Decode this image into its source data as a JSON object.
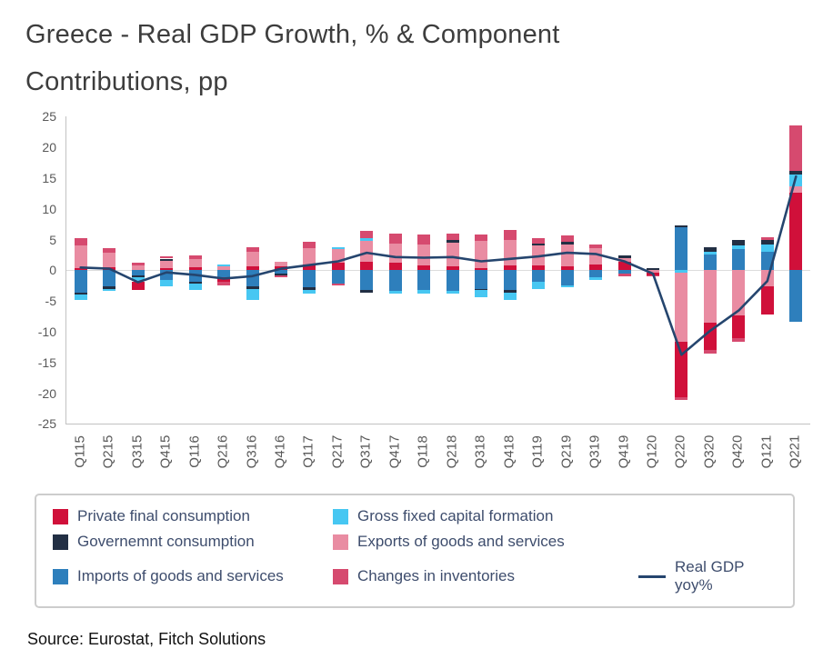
{
  "title": "Greece - Real GDP Growth, % & Component Contributions, pp",
  "source": "Source: Eurostat, Fitch Solutions",
  "colors": {
    "private_consumption": "#D0103A",
    "government_consumption": "#222F44",
    "gross_fixed_capital_formation": "#47C7F2",
    "exports": "#E98CA2",
    "imports": "#2E7FBC",
    "inventories": "#D64A6F",
    "gdp_line": "#25456E",
    "axis_text": "#595959",
    "legend_text": "#3E4D6B"
  },
  "legend": {
    "items": [
      {
        "label": "Private final consumption",
        "color": "#D0103A",
        "type": "box"
      },
      {
        "label": "Gross fixed capital formation",
        "color": "#47C7F2",
        "type": "box"
      },
      {
        "label": "Governemnt consumption",
        "color": "#222F44",
        "type": "box"
      },
      {
        "label": "Exports of goods and services",
        "color": "#E98CA2",
        "type": "box"
      },
      {
        "label": "Imports of goods and services",
        "color": "#2E7FBC",
        "type": "box"
      },
      {
        "label": "Changes in inventories",
        "color": "#D64A6F",
        "type": "box"
      },
      {
        "label": "Real GDP yoy%",
        "color": "#25456E",
        "type": "line"
      }
    ]
  },
  "chart_data": {
    "type": "bar",
    "stacked": true,
    "title": "Greece - Real GDP Growth, % & Component Contributions, pp",
    "ylabel": "",
    "xlabel": "",
    "ylim": [
      -25,
      25
    ],
    "yticks": [
      25,
      20,
      15,
      10,
      5,
      0,
      -5,
      -10,
      -15,
      -20,
      -25
    ],
    "grid": false,
    "legend_position": "bottom",
    "categories": [
      "Q115",
      "Q215",
      "Q315",
      "Q415",
      "Q116",
      "Q216",
      "Q316",
      "Q416",
      "Q117",
      "Q217",
      "Q317",
      "Q417",
      "Q118",
      "Q218",
      "Q318",
      "Q418",
      "Q119",
      "Q219",
      "Q319",
      "Q419",
      "Q120",
      "Q220",
      "Q320",
      "Q420",
      "Q121",
      "Q221"
    ],
    "stack_order_positive": [
      "private",
      "exports",
      "imports",
      "gfcf",
      "gov",
      "inventories"
    ],
    "stack_order_negative": [
      "imports",
      "gov",
      "gfcf",
      "exports",
      "private",
      "inventories"
    ],
    "series": [
      {
        "key": "private",
        "name": "Private final consumption",
        "color": "#D0103A",
        "values": [
          0.4,
          0.5,
          -1.4,
          0.4,
          0.5,
          -0.6,
          0.6,
          0.6,
          1.0,
          1.2,
          1.4,
          1.2,
          0.8,
          0.6,
          0.4,
          0.8,
          0.8,
          0.6,
          1.0,
          1.4,
          -0.4,
          -9.0,
          -4.4,
          -3.6,
          -4.6,
          12.6
        ]
      },
      {
        "key": "gov",
        "name": "Governemnt consumption",
        "color": "#222F44",
        "values": [
          -0.4,
          -0.5,
          -0.3,
          0.3,
          -0.4,
          0.0,
          -0.4,
          -0.2,
          -0.4,
          0.0,
          -0.4,
          0.0,
          0.0,
          0.4,
          -0.2,
          -0.4,
          0.4,
          0.4,
          0.0,
          0.4,
          0.4,
          0.3,
          0.7,
          1.0,
          0.8,
          0.6
        ]
      },
      {
        "key": "gfcf",
        "name": "Gross fixed capital formation",
        "color": "#47C7F2",
        "values": [
          -0.8,
          -0.3,
          -0.7,
          -1.0,
          -1.0,
          0.4,
          -1.8,
          0.0,
          -0.6,
          0.4,
          0.4,
          -0.4,
          -0.6,
          -0.4,
          -1.2,
          -1.2,
          -1.2,
          -0.4,
          -0.4,
          0.0,
          0.0,
          -0.4,
          0.4,
          0.6,
          1.2,
          2.0
        ]
      },
      {
        "key": "exports",
        "name": "Exports of goods and services",
        "color": "#E98CA2",
        "values": [
          3.6,
          2.4,
          0.8,
          1.2,
          1.4,
          0.6,
          2.4,
          0.8,
          2.6,
          2.2,
          3.4,
          3.1,
          3.4,
          3.9,
          4.4,
          4.2,
          3.2,
          3.6,
          2.6,
          0.6,
          -0.4,
          -11.3,
          -8.6,
          -7.4,
          -2.6,
          1.0
        ]
      },
      {
        "key": "imports",
        "name": "Imports of goods and services",
        "color": "#2E7FBC",
        "values": [
          -3.6,
          -2.6,
          -0.8,
          -1.6,
          -1.8,
          -1.2,
          -2.6,
          -0.6,
          -2.8,
          -2.2,
          -3.2,
          -3.4,
          -3.2,
          -3.4,
          -3.0,
          -3.2,
          -1.8,
          -2.4,
          -1.2,
          -0.6,
          0.0,
          7.0,
          2.6,
          3.4,
          3.0,
          -8.4
        ]
      },
      {
        "key": "inventories",
        "name": "Changes in inventories",
        "color": "#D64A6F",
        "values": [
          1.2,
          0.7,
          0.4,
          0.3,
          0.5,
          -0.6,
          0.8,
          -0.4,
          1.0,
          -0.2,
          1.2,
          1.6,
          1.6,
          1.0,
          1.0,
          1.6,
          0.8,
          1.0,
          0.6,
          -0.4,
          -0.2,
          -0.4,
          -0.6,
          -0.6,
          0.4,
          7.4
        ]
      }
    ],
    "line_series": {
      "name": "Real GDP yoy%",
      "color": "#25456E",
      "values": [
        0.4,
        0.2,
        -2.0,
        -0.4,
        -0.8,
        -1.4,
        -1.0,
        0.2,
        0.8,
        1.4,
        2.8,
        2.1,
        2.0,
        2.1,
        1.4,
        1.8,
        2.2,
        2.8,
        2.6,
        1.4,
        -0.6,
        -13.8,
        -9.9,
        -6.6,
        -1.8,
        15.2
      ]
    }
  }
}
